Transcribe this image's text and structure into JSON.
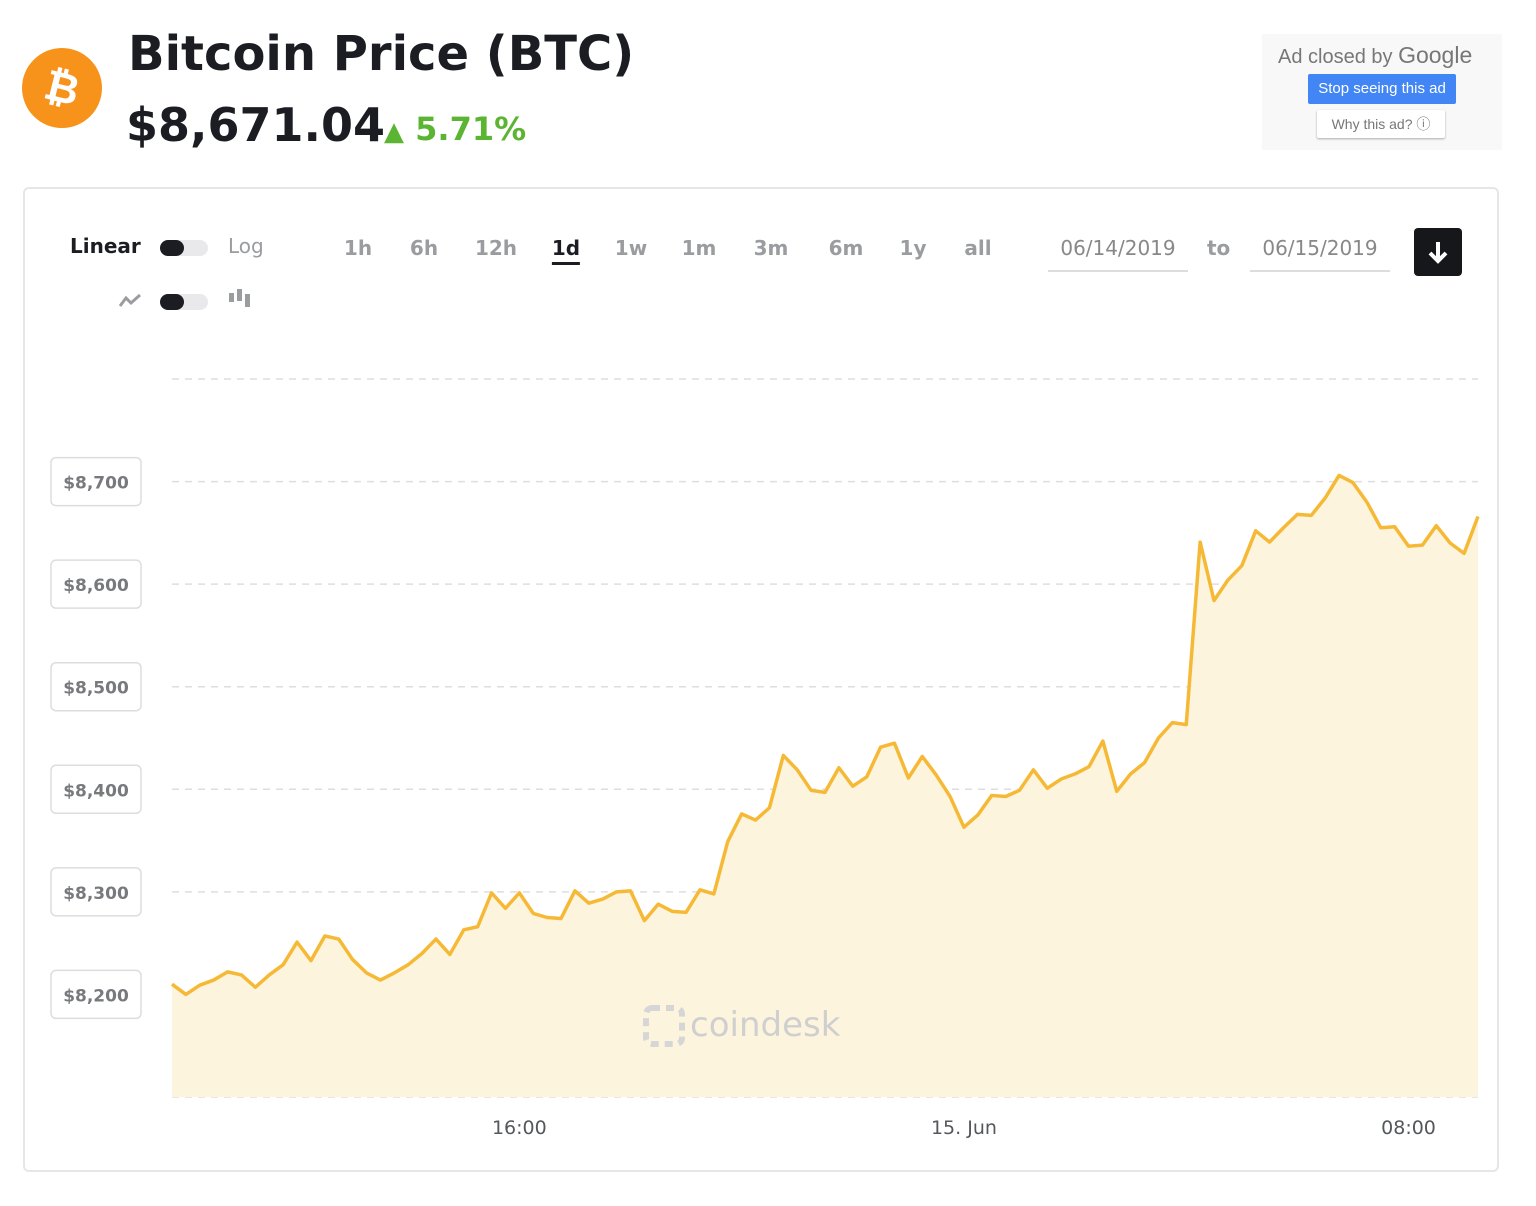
{
  "header": {
    "title": "Bitcoin Price",
    "symbol": "(BTC)",
    "price": "$8,671.04",
    "change": "5.71%"
  },
  "ad": {
    "closed_by": "Ad closed by",
    "brand": "Google",
    "stop": "Stop seeing this ad",
    "why": "Why this ad?"
  },
  "controls": {
    "scales": [
      "Linear",
      "Log"
    ],
    "ranges": [
      "1h",
      "6h",
      "12h",
      "1d",
      "1w",
      "1m",
      "3m",
      "6m",
      "1y",
      "all"
    ],
    "selected_range": "1d",
    "from": "06/14/2019",
    "to_label": "to",
    "to": "06/15/2019"
  },
  "watermark": "coindesk",
  "chart_data": {
    "type": "area",
    "x": [
      9.75,
      10,
      10.25,
      10.5,
      10.75,
      11,
      11.25,
      11.5,
      11.75,
      12,
      12.25,
      12.5,
      12.75,
      13,
      13.25,
      13.5,
      13.75,
      14,
      14.25,
      14.5,
      14.75,
      15,
      15.25,
      15.5,
      15.75,
      16,
      16.25,
      16.5,
      16.75,
      17,
      17.25,
      17.5,
      17.75,
      18,
      18.25,
      18.5,
      18.75,
      19,
      19.25,
      19.5,
      19.75,
      20,
      20.25,
      20.5,
      20.75,
      21,
      21.25,
      21.5,
      21.75,
      22,
      22.25,
      22.5,
      22.75,
      23,
      23.25,
      23.5,
      23.75,
      24,
      24.25,
      24.5,
      24.75,
      25,
      25.25,
      25.5,
      25.75,
      26,
      26.25,
      26.5,
      26.75,
      27,
      27.25,
      27.5,
      27.75,
      28,
      28.25,
      28.5,
      28.75,
      29,
      29.25,
      29.5,
      29.75,
      30,
      30.25,
      30.5,
      30.75,
      31,
      31.25,
      31.5,
      31.75,
      32,
      32.25,
      32.5,
      32.75,
      33,
      33.25
    ],
    "series": [
      {
        "name": "BTC",
        "color": "#f6b936",
        "fill": "#fdf4de",
        "values": [
          8210,
          8200,
          8209,
          8214,
          8222,
          8219,
          8207,
          8219,
          8229,
          8251,
          8233,
          8257,
          8254,
          8234,
          8221,
          8214,
          8221,
          8229,
          8240,
          8254,
          8239,
          8263,
          8266,
          8299,
          8284,
          8299,
          8279,
          8275,
          8274,
          8301,
          8289,
          8293,
          8300,
          8301,
          8272,
          8288,
          8281,
          8280,
          8302,
          8298,
          8349,
          8376,
          8370,
          8382,
          8433,
          8419,
          8399,
          8397,
          8421,
          8403,
          8412,
          8441,
          8445,
          8411,
          8432,
          8414,
          8393,
          8363,
          8375,
          8394,
          8393,
          8399,
          8419,
          8401,
          8410,
          8415,
          8422,
          8447,
          8398,
          8415,
          8426,
          8450,
          8465,
          8463,
          8641,
          8584,
          8604,
          8618,
          8652,
          8641,
          8655,
          8668,
          8667,
          8684,
          8706,
          8699,
          8680,
          8655,
          8656,
          8637,
          8638,
          8657,
          8640,
          8630,
          8666
        ]
      }
    ],
    "xlim": [
      9.75,
      33.25
    ],
    "xticks": [
      {
        "value": 16,
        "label": "16:00"
      },
      {
        "value": 24,
        "label": "15. Jun"
      },
      {
        "value": 32,
        "label": "08:00"
      }
    ],
    "ylim": [
      8100,
      8800
    ],
    "yticks": [
      {
        "value": 8200,
        "label": "$8,200"
      },
      {
        "value": 8300,
        "label": "$8,300"
      },
      {
        "value": 8400,
        "label": "$8,400"
      },
      {
        "value": 8500,
        "label": "$8,500"
      },
      {
        "value": 8600,
        "label": "$8,600"
      },
      {
        "value": 8700,
        "label": "$8,700"
      }
    ],
    "grid": true
  }
}
